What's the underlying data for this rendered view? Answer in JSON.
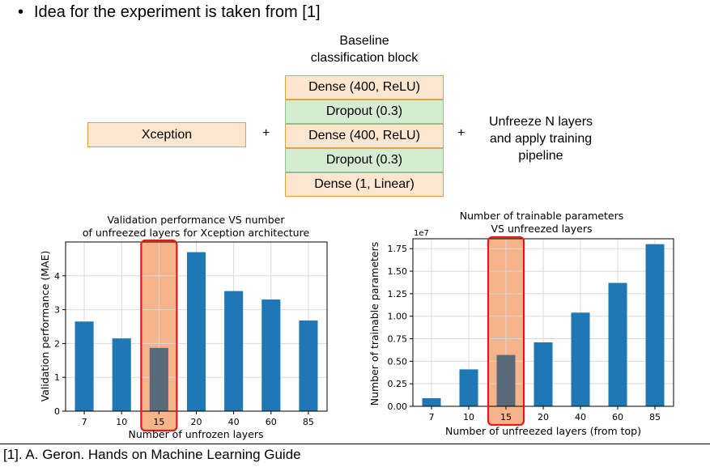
{
  "bullet": {
    "marker": "•",
    "text": "Idea for the experiment is taken from [1]"
  },
  "diagram": {
    "block_caption_line1": "Baseline",
    "block_caption_line2": "classification block",
    "backbone": "Xception",
    "plus1": "+",
    "plus2": "+",
    "layers": [
      "Dense (400, ReLU)",
      "Dropout (0.3)",
      "Dense (400, ReLU)",
      "Dropout (0.3)",
      "Dense (1, Linear)"
    ],
    "step_line1": "Unfreeze N layers",
    "step_line2": "and apply training",
    "step_line3": "pipeline"
  },
  "chart_data": [
    {
      "type": "bar",
      "title_line1": "Validation performance VS number",
      "title_line2": "of unfreezed layers for Xception architecture",
      "xlabel": "Number of unfrozen layers",
      "ylabel": "Validation performance (MAE)",
      "categories": [
        "7",
        "10",
        "15",
        "20",
        "40",
        "60",
        "85"
      ],
      "values": [
        2.65,
        2.15,
        1.87,
        4.7,
        3.55,
        3.3,
        2.68
      ],
      "ylim": [
        0,
        5.0
      ],
      "yticks": [
        0,
        1,
        2,
        3,
        4
      ],
      "ytick_labels": [
        "0",
        "1",
        "2",
        "3",
        "4"
      ],
      "highlight_category": "15",
      "grid": true,
      "bar_color": "#1f77b4",
      "highlight_fill": "#f7b48a",
      "highlight_border": "#e8191b"
    },
    {
      "type": "bar",
      "title_line1": "Number of trainable parameters",
      "title_line2": "VS unfreezed layers",
      "xlabel": "Number of unfreezed layers (from top)",
      "ylabel": "Number of trainable parameters",
      "scale_label": "1e7",
      "categories": [
        "7",
        "10",
        "15",
        "20",
        "40",
        "60",
        "85"
      ],
      "values": [
        0.09,
        0.41,
        0.57,
        0.71,
        1.04,
        1.37,
        1.8
      ],
      "ylim": [
        0,
        1.86
      ],
      "yticks": [
        0,
        0.25,
        0.5,
        0.75,
        1.0,
        1.25,
        1.5,
        1.75
      ],
      "ytick_labels": [
        "0.00",
        "0.25",
        "0.50",
        "0.75",
        "1.00",
        "1.25",
        "1.50",
        "1.75"
      ],
      "highlight_category": "15",
      "grid": true,
      "bar_color": "#1f77b4",
      "highlight_fill": "#f7b48a",
      "highlight_border": "#e8191b"
    }
  ],
  "footer": "[1]. A. Geron. Hands on Machine Learning Guide"
}
